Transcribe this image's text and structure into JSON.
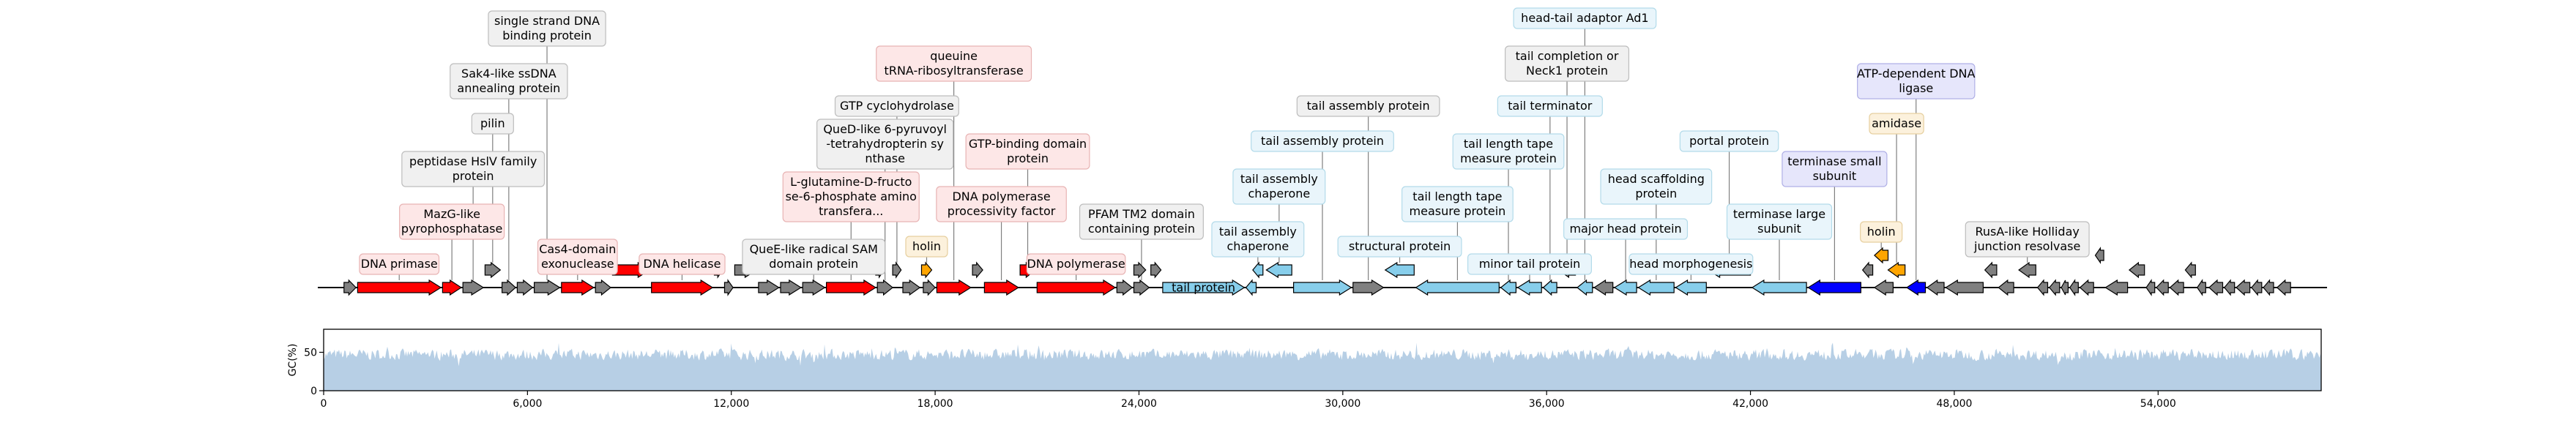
{
  "chart_data": {
    "type": "genome_map",
    "genome_range": [
      0,
      58800
    ],
    "x_ticks": [
      0,
      6000,
      12000,
      18000,
      24000,
      30000,
      36000,
      42000,
      48000,
      54000
    ],
    "x_tick_labels": [
      "0",
      "6,000",
      "12,000",
      "18,000",
      "24,000",
      "30,000",
      "36,000",
      "42,000",
      "48,000",
      "54,000"
    ],
    "gc_axis_label": "GC(%)",
    "gc_ylim": [
      0,
      80
    ],
    "gc_ticks": [
      0,
      50
    ],
    "gc_mean": 47,
    "gc_fill_color": "#b7cfe5",
    "function_colors": {
      "red": "#ff0000",
      "gray": "#808080",
      "light_blue": "#87ceeb",
      "blue": "#0000ff",
      "orange": "#ffa500"
    },
    "label_box_colors": {
      "red": {
        "fill": "#fde7e7",
        "stroke": "#e8b4b4"
      },
      "gray": {
        "fill": "#f0f0f0",
        "stroke": "#bdbdbd"
      },
      "light_blue": {
        "fill": "#e9f5fb",
        "stroke": "#b3dbea"
      },
      "blue": {
        "fill": "#e6e6fb",
        "stroke": "#b0b0e6"
      },
      "orange": {
        "fill": "#fcf1dc",
        "stroke": "#e6cf9f"
      }
    },
    "genes": [
      {
        "start": 600,
        "end": 950,
        "strand": 1,
        "color": "gray"
      },
      {
        "start": 1000,
        "end": 3450,
        "strand": 1,
        "color": "red",
        "label": "DNA primase"
      },
      {
        "start": 3500,
        "end": 4050,
        "strand": 1,
        "color": "red",
        "label": "MazG-like pyrophosphatase"
      },
      {
        "start": 4100,
        "end": 4700,
        "strand": 1,
        "color": "gray",
        "label": "peptidase HslV family protein"
      },
      {
        "start": 4750,
        "end": 5200,
        "strand": 1,
        "color": "gray",
        "row": 1,
        "label": "pilin"
      },
      {
        "start": 5250,
        "end": 5650,
        "strand": 1,
        "color": "gray",
        "label": "Sak4-like ssDNA annealing protein"
      },
      {
        "start": 5700,
        "end": 6150,
        "strand": 1,
        "color": "gray"
      },
      {
        "start": 6200,
        "end": 6950,
        "strand": 1,
        "color": "gray",
        "label": "single strand DNA binding protein"
      },
      {
        "start": 7000,
        "end": 7950,
        "strand": 1,
        "color": "red",
        "label": "Cas4-domain exonuclease"
      },
      {
        "start": 8000,
        "end": 8450,
        "strand": 1,
        "color": "gray"
      },
      {
        "start": 8500,
        "end": 9600,
        "strand": 1,
        "color": "red",
        "row": 1
      },
      {
        "start": 9650,
        "end": 11450,
        "strand": 1,
        "color": "red",
        "label": "DNA helicase"
      },
      {
        "start": 11500,
        "end": 11750,
        "strand": 1,
        "color": "gray",
        "row": 1
      },
      {
        "start": 11800,
        "end": 12050,
        "strand": 1,
        "color": "gray"
      },
      {
        "start": 12100,
        "end": 12750,
        "strand": 1,
        "color": "gray",
        "row": 1
      },
      {
        "start": 12800,
        "end": 13400,
        "strand": 1,
        "color": "gray"
      },
      {
        "start": 13450,
        "end": 14050,
        "strand": 1,
        "color": "gray"
      },
      {
        "start": 14100,
        "end": 14750,
        "strand": 1,
        "color": "gray",
        "label": "QueE-like radical SAM domain protein"
      },
      {
        "start": 14800,
        "end": 16250,
        "strand": 1,
        "color": "red",
        "label": "L-glutamine-D-fructose-6-phosphate aminotransfera..."
      },
      {
        "start": 16300,
        "end": 16750,
        "strand": 1,
        "color": "gray",
        "label": "QueD-like 6-pyruvoyl-tetrahydropterin synthase"
      },
      {
        "start": 16250,
        "end": 16500,
        "strand": 1,
        "color": "gray",
        "row": 1
      },
      {
        "start": 16750,
        "end": 17000,
        "strand": 1,
        "color": "gray",
        "row": 1,
        "label": "GTP cyclohydrolase"
      },
      {
        "start": 17050,
        "end": 17550,
        "strand": 1,
        "color": "gray"
      },
      {
        "start": 17600,
        "end": 17900,
        "strand": 1,
        "color": "orange",
        "row": 1,
        "label": "holin"
      },
      {
        "start": 17650,
        "end": 18000,
        "strand": 1,
        "color": "gray"
      },
      {
        "start": 18050,
        "end": 19050,
        "strand": 1,
        "color": "red",
        "label": "queuine tRNA-ribosyltransferase"
      },
      {
        "start": 19100,
        "end": 19400,
        "strand": 1,
        "color": "gray",
        "row": 1
      },
      {
        "start": 19450,
        "end": 20450,
        "strand": 1,
        "color": "red",
        "label": "DNA polymerase processivity factor"
      },
      {
        "start": 20500,
        "end": 20950,
        "strand": 1,
        "color": "red",
        "row": 1,
        "label": "GTP-binding domain protein"
      },
      {
        "start": 21000,
        "end": 23300,
        "strand": 1,
        "color": "red",
        "label": "DNA polymerase"
      },
      {
        "start": 23350,
        "end": 23800,
        "strand": 1,
        "color": "gray"
      },
      {
        "start": 23850,
        "end": 24200,
        "strand": 1,
        "color": "gray",
        "row": 1
      },
      {
        "start": 23850,
        "end": 24300,
        "strand": 1,
        "color": "gray",
        "label": "PFAM TM2 domain containing protein"
      },
      {
        "start": 24350,
        "end": 24650,
        "strand": 1,
        "color": "gray",
        "row": 1
      },
      {
        "start": 24700,
        "end": 27100,
        "strand": 1,
        "color": "light_blue",
        "label": "tail protein",
        "inside": true
      },
      {
        "start": 27150,
        "end": 27450,
        "strand": -1,
        "color": "light_blue"
      },
      {
        "start": 27350,
        "end": 27650,
        "strand": -1,
        "color": "light_blue",
        "row": 1,
        "label": "tail assembly chaperone"
      },
      {
        "start": 27750,
        "end": 28500,
        "strand": -1,
        "color": "light_blue",
        "row": 1,
        "label": "tail assembly chaperone"
      },
      {
        "start": 28550,
        "end": 30250,
        "strand": 1,
        "color": "light_blue",
        "label": "tail assembly protein"
      },
      {
        "start": 30300,
        "end": 31200,
        "strand": 1,
        "color": "gray",
        "label": "tail assembly protein"
      },
      {
        "start": 31250,
        "end": 32100,
        "strand": -1,
        "color": "light_blue",
        "row": 1,
        "label": "structural protein"
      },
      {
        "start": 32150,
        "end": 34600,
        "strand": -1,
        "color": "light_blue",
        "label": "tail length tape measure protein"
      },
      {
        "start": 34650,
        "end": 35100,
        "strand": -1,
        "color": "light_blue",
        "label": "tail length tape measure protein"
      },
      {
        "start": 35150,
        "end": 35850,
        "strand": -1,
        "color": "light_blue",
        "label": "minor tail protein"
      },
      {
        "start": 35900,
        "end": 36300,
        "strand": -1,
        "color": "light_blue",
        "label": "tail terminator"
      },
      {
        "start": 36350,
        "end": 36850,
        "strand": -1,
        "color": "gray",
        "row": 1,
        "label": "tail completion or Neck1 protein"
      },
      {
        "start": 36900,
        "end": 37350,
        "strand": -1,
        "color": "light_blue",
        "label": "head-tail adaptor Ad1"
      },
      {
        "start": 37400,
        "end": 37950,
        "strand": -1,
        "color": "gray"
      },
      {
        "start": 38000,
        "end": 38650,
        "strand": -1,
        "color": "light_blue",
        "label": "major head protein"
      },
      {
        "start": 38700,
        "end": 39750,
        "strand": -1,
        "color": "light_blue",
        "label": "head scaffolding protein"
      },
      {
        "start": 39800,
        "end": 40700,
        "strand": -1,
        "color": "light_blue",
        "label": "head morphogenesis"
      },
      {
        "start": 40750,
        "end": 42000,
        "strand": -1,
        "color": "light_blue",
        "row": 1,
        "label": "portal protein"
      },
      {
        "start": 42050,
        "end": 43650,
        "strand": -1,
        "color": "light_blue",
        "label": "terminase large subunit"
      },
      {
        "start": 43700,
        "end": 45250,
        "strand": -1,
        "color": "blue",
        "label": "terminase small subunit"
      },
      {
        "start": 45300,
        "end": 45600,
        "strand": -1,
        "color": "gray",
        "row": 1
      },
      {
        "start": 45650,
        "end": 46200,
        "strand": -1,
        "color": "gray"
      },
      {
        "start": 45650,
        "end": 46050,
        "strand": -1,
        "color": "orange",
        "row": 2,
        "label": "holin"
      },
      {
        "start": 46050,
        "end": 46550,
        "strand": -1,
        "color": "orange",
        "row": 1,
        "label": "amidase"
      },
      {
        "start": 46600,
        "end": 47150,
        "strand": -1,
        "color": "blue",
        "label": "ATP-dependent DNA ligase"
      },
      {
        "start": 47200,
        "end": 47700,
        "strand": -1,
        "color": "gray"
      },
      {
        "start": 47750,
        "end": 48850,
        "strand": -1,
        "color": "gray"
      },
      {
        "start": 48900,
        "end": 49250,
        "strand": -1,
        "color": "gray",
        "row": 1
      },
      {
        "start": 49300,
        "end": 49750,
        "strand": -1,
        "color": "gray"
      },
      {
        "start": 49900,
        "end": 50400,
        "strand": -1,
        "color": "gray",
        "row": 1,
        "label": "RusA-like Holliday junction resolvase"
      },
      {
        "start": 50450,
        "end": 50750,
        "strand": -1,
        "color": "gray"
      },
      {
        "start": 50800,
        "end": 51100,
        "strand": -1,
        "color": "gray"
      },
      {
        "start": 51150,
        "end": 51350,
        "strand": -1,
        "color": "gray"
      },
      {
        "start": 51400,
        "end": 51650,
        "strand": -1,
        "color": "gray"
      },
      {
        "start": 51700,
        "end": 52100,
        "strand": -1,
        "color": "gray"
      },
      {
        "start": 52150,
        "end": 52400,
        "strand": -1,
        "color": "gray",
        "row": 2
      },
      {
        "start": 52450,
        "end": 53100,
        "strand": -1,
        "color": "gray"
      },
      {
        "start": 53150,
        "end": 53600,
        "strand": -1,
        "color": "gray",
        "row": 1
      },
      {
        "start": 53650,
        "end": 53900,
        "strand": -1,
        "color": "gray"
      },
      {
        "start": 53950,
        "end": 54300,
        "strand": -1,
        "color": "gray"
      },
      {
        "start": 54350,
        "end": 54750,
        "strand": -1,
        "color": "gray"
      },
      {
        "start": 54800,
        "end": 55100,
        "strand": -1,
        "color": "gray",
        "row": 1
      },
      {
        "start": 55150,
        "end": 55400,
        "strand": -1,
        "color": "gray"
      },
      {
        "start": 55500,
        "end": 55900,
        "strand": -1,
        "color": "gray"
      },
      {
        "start": 55950,
        "end": 56250,
        "strand": -1,
        "color": "gray"
      },
      {
        "start": 56300,
        "end": 56700,
        "strand": -1,
        "color": "gray"
      },
      {
        "start": 56750,
        "end": 57050,
        "strand": -1,
        "color": "gray"
      },
      {
        "start": 57100,
        "end": 57400,
        "strand": -1,
        "color": "gray"
      },
      {
        "start": 57500,
        "end": 57900,
        "strand": -1,
        "color": "gray"
      }
    ]
  }
}
